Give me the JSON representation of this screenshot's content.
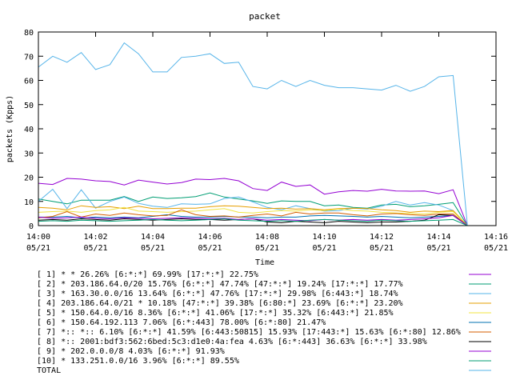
{
  "chart_data": {
    "type": "line",
    "title": "packet",
    "xlabel": "Time",
    "ylabel": "packets (Kpps)",
    "ylim": [
      0,
      80
    ],
    "y_ticks": [
      "0",
      "10",
      "20",
      "30",
      "40",
      "50",
      "60",
      "70",
      "80"
    ],
    "x_ticks": [
      {
        "time": "14:00",
        "date": "05/21"
      },
      {
        "time": "14:02",
        "date": "05/21"
      },
      {
        "time": "14:04",
        "date": "05/21"
      },
      {
        "time": "14:06",
        "date": "05/21"
      },
      {
        "time": "14:08",
        "date": "05/21"
      },
      {
        "time": "14:10",
        "date": "05/21"
      },
      {
        "time": "14:12",
        "date": "05/21"
      },
      {
        "time": "14:14",
        "date": "05/21"
      },
      {
        "time": "14:16",
        "date": "05/21"
      }
    ],
    "x_range": [
      "14:00",
      "14:16"
    ],
    "x_times": [
      "14:00",
      "14:00:30",
      "14:01",
      "14:01:30",
      "14:02",
      "14:02:30",
      "14:03",
      "14:03:30",
      "14:04",
      "14:04:30",
      "14:05",
      "14:05:30",
      "14:06",
      "14:06:30",
      "14:07",
      "14:07:30",
      "14:08",
      "14:08:30",
      "14:09",
      "14:09:30",
      "14:10",
      "14:10:30",
      "14:11",
      "14:11:30",
      "14:12",
      "14:12:30",
      "14:13",
      "14:13:30",
      "14:14",
      "14:14:30",
      "14:15"
    ],
    "grid": false,
    "legend_position": "below",
    "series": [
      {
        "label": "[ 1] * * 26.26%  [6:*:*] 69.99% [17:*:*] 22.75%",
        "color": "#9400d3",
        "values": [
          17.5,
          17,
          19.5,
          19.2,
          18.5,
          18.2,
          16.8,
          18.8,
          18,
          17.2,
          17.8,
          19.2,
          19,
          19.5,
          18.5,
          15.3,
          14.5,
          18,
          16.2,
          16.8,
          13,
          14,
          14.5,
          14.2,
          15,
          14.3,
          14.2,
          14.3,
          13.2,
          14.8,
          0
        ]
      },
      {
        "label": "[ 2] * 203.186.64.0/20 15.76%  [6:*:*] 47.74% [47:*:*] 19.24% [17:*:*] 17.77%",
        "color": "#009e73",
        "values": [
          11,
          10,
          9,
          10.5,
          10.5,
          10.5,
          12,
          10,
          11.8,
          11.2,
          11.5,
          12,
          13.5,
          11.8,
          11,
          10.2,
          9.2,
          10.2,
          10,
          10,
          8.2,
          8.5,
          7.5,
          7.2,
          8.5,
          8.8,
          7.8,
          8.2,
          8.8,
          9.5,
          0
        ]
      },
      {
        "label": "[ 3] * 163.30.0.0/16 13.64%  [6:*:*] 47.76% [17:*:*] 29.98% [6:443:*] 18.74%",
        "color": "#56b4e9",
        "values": [
          10,
          15,
          7,
          14.8,
          7.2,
          10,
          11.8,
          9.2,
          8,
          7.5,
          9,
          8.8,
          9,
          11.2,
          11.8,
          9.8,
          7.5,
          6.5,
          8.2,
          7,
          6,
          6.2,
          7.2,
          6.8,
          8,
          10,
          8.5,
          9.5,
          8.5,
          6.2,
          0
        ]
      },
      {
        "label": "[ 4] 203.186.64.0/21 * 10.18%  [47:*:*] 39.38% [6:80:*] 23.69% [6:*:*] 23.20%",
        "color": "#e69f00",
        "values": [
          7.5,
          7.2,
          6.5,
          8.2,
          7.5,
          7.8,
          7,
          8,
          7,
          7,
          7.2,
          7.2,
          7.8,
          8.2,
          8,
          7.5,
          7,
          7.2,
          6.8,
          7,
          6.5,
          7,
          7.2,
          7,
          6.5,
          6.2,
          5.5,
          6,
          5.8,
          6.2,
          0
        ]
      },
      {
        "label": "[ 5] * 150.64.0.0/16 8.36%  [6:*:*] 41.06% [17:*:*] 35.32% [6:443:*] 21.85%",
        "color": "#f0e442",
        "values": [
          5.5,
          5.8,
          6,
          5.5,
          6.2,
          6.5,
          7.5,
          6,
          5.8,
          5.5,
          5.8,
          6,
          6.5,
          7,
          5.5,
          5.2,
          5.8,
          6.2,
          6,
          6.5,
          6.2,
          6.8,
          6.2,
          6,
          5.5,
          5.2,
          5,
          4.8,
          5.5,
          5.8,
          0
        ]
      },
      {
        "label": "[ 6] * 150.64.192.113 7.06%  [6:*:443] 78.00% [6:*:80] 21.47%",
        "color": "#0072b2",
        "values": [
          3.5,
          3.5,
          3.8,
          3.2,
          3.5,
          3.2,
          3.5,
          3.2,
          3.8,
          4.5,
          3.8,
          3.5,
          3.5,
          3.8,
          3.5,
          3.5,
          3.2,
          3.5,
          3.5,
          4,
          4.2,
          4,
          3.8,
          3.5,
          3.8,
          3.5,
          3.2,
          3.5,
          3.8,
          4.2,
          0
        ]
      },
      {
        "label": "[ 7] *:: *:: 6.10%  [6:*:*] 41.59% [6:443:50815] 15.93% [17:443:*] 15.63% [6:*:80] 12.86%",
        "color": "#d55e00",
        "values": [
          3.2,
          3.8,
          5.8,
          3.5,
          4.8,
          4.2,
          5.2,
          4.5,
          4,
          4.2,
          6.5,
          4.5,
          3.8,
          4,
          3.5,
          4.2,
          4.8,
          4,
          5.5,
          4.8,
          5.2,
          5.2,
          4.5,
          4,
          4.8,
          5,
          4.5,
          4.2,
          4.8,
          4.8,
          0
        ]
      },
      {
        "label": "[ 8] *:: 2001:bdf3:562:6bed:5c3:d1e0:4a:fea 4.63%  [6:*:443] 36.63% [6:*:*] 33.98%",
        "color": "#000000",
        "values": [
          2.2,
          2.5,
          2.2,
          2.8,
          2.5,
          2.2,
          2.8,
          2.5,
          2.2,
          2.5,
          2.8,
          2.5,
          2.5,
          2.2,
          2.5,
          2.8,
          1.5,
          1.2,
          1.8,
          1.5,
          1.2,
          1.8,
          1.5,
          1.2,
          1.5,
          1.5,
          1.8,
          2.2,
          4.5,
          4.2,
          0
        ]
      },
      {
        "label": "[ 9] * 202.0.0.0/8 4.03%  [6:*:*] 91.93%",
        "color": "#9400d3",
        "values": [
          3.5,
          3,
          3.2,
          3.5,
          3,
          2.8,
          3.2,
          3,
          2.8,
          3,
          3.2,
          3,
          2.8,
          3,
          2.5,
          2.8,
          2.2,
          2.5,
          2.2,
          2,
          2.5,
          2.2,
          2.5,
          2.2,
          2.5,
          2.2,
          2.5,
          2.8,
          3.2,
          4.2,
          0
        ]
      },
      {
        "label": "[10] * 133.251.0.0/16 3.96%  [6:*:*] 89.55%",
        "color": "#009e73",
        "values": [
          1.8,
          2,
          1.8,
          2.2,
          2,
          1.8,
          2,
          2.2,
          2.5,
          2.2,
          2,
          2.2,
          2.5,
          2.8,
          2.2,
          2,
          1.8,
          2,
          1.8,
          2.2,
          2.5,
          2.2,
          2,
          1.8,
          2.2,
          2,
          1.8,
          2,
          2.2,
          2.5,
          0
        ]
      },
      {
        "label": "TOTAL",
        "color": "#56b4e9",
        "values": [
          65.5,
          70,
          67.5,
          71.5,
          64.5,
          66.5,
          75.5,
          71,
          63.5,
          63.5,
          69.5,
          70,
          71,
          67,
          67.5,
          57.5,
          56.5,
          60,
          57.5,
          60,
          58,
          57,
          57,
          56.5,
          56,
          58,
          55.5,
          57.5,
          61.5,
          62,
          0
        ]
      }
    ]
  }
}
